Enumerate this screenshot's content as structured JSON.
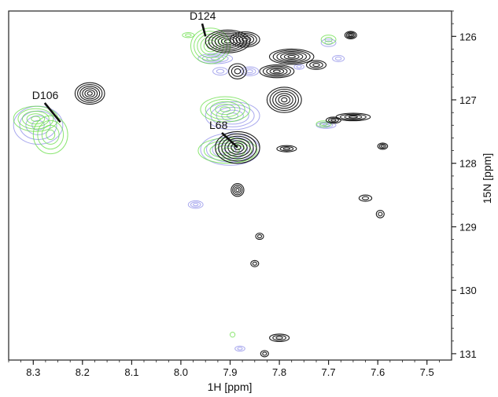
{
  "chart_data": {
    "type": "scatter",
    "subtype": "2D 1H-15N HSQC contour overlay",
    "xlabel": "1H [ppm]",
    "ylabel": "15N [ppm]",
    "xlim": [
      8.35,
      7.45
    ],
    "ylim": [
      125.6,
      131.1
    ],
    "x_reversed": true,
    "y_reversed": true,
    "x_ticks": [
      "8.3",
      "8.2",
      "8.1",
      "8.0",
      "7.9",
      "7.8",
      "7.7",
      "7.6",
      "7.5"
    ],
    "x_tick_values": [
      8.3,
      8.2,
      8.1,
      8.0,
      7.9,
      7.8,
      7.7,
      7.6,
      7.5
    ],
    "y_ticks": [
      "126",
      "127",
      "128",
      "129",
      "130",
      "131"
    ],
    "y_tick_values": [
      126,
      127,
      128,
      129,
      130,
      131
    ],
    "y_axis_position": "right",
    "grid": false,
    "series_colors": {
      "black": "#111111",
      "green": "#66dd44",
      "blue": "#8c8ce8"
    },
    "series": [
      {
        "color": "black",
        "peaks": [
          {
            "x": 7.655,
            "y": 125.98,
            "rx": 0.012,
            "ry": 0.06,
            "levels": 4
          },
          {
            "x": 7.905,
            "y": 126.08,
            "rx": 0.045,
            "ry": 0.18,
            "levels": 7
          },
          {
            "x": 7.87,
            "y": 126.05,
            "rx": 0.03,
            "ry": 0.12,
            "levels": 5
          },
          {
            "x": 7.775,
            "y": 126.32,
            "rx": 0.045,
            "ry": 0.12,
            "levels": 6
          },
          {
            "x": 7.805,
            "y": 126.55,
            "rx": 0.035,
            "ry": 0.1,
            "levels": 5
          },
          {
            "x": 7.725,
            "y": 126.45,
            "rx": 0.02,
            "ry": 0.07,
            "levels": 3
          },
          {
            "x": 7.885,
            "y": 126.55,
            "rx": 0.018,
            "ry": 0.12,
            "levels": 3
          },
          {
            "x": 8.185,
            "y": 126.9,
            "rx": 0.03,
            "ry": 0.17,
            "levels": 6
          },
          {
            "x": 7.79,
            "y": 127.0,
            "rx": 0.035,
            "ry": 0.2,
            "levels": 6
          },
          {
            "x": 7.65,
            "y": 127.27,
            "rx": 0.035,
            "ry": 0.06,
            "levels": 4
          },
          {
            "x": 7.69,
            "y": 127.32,
            "rx": 0.015,
            "ry": 0.05,
            "levels": 3
          },
          {
            "x": 7.885,
            "y": 127.75,
            "rx": 0.045,
            "ry": 0.25,
            "levels": 7
          },
          {
            "x": 7.785,
            "y": 127.77,
            "rx": 0.02,
            "ry": 0.05,
            "levels": 3
          },
          {
            "x": 7.59,
            "y": 127.73,
            "rx": 0.01,
            "ry": 0.05,
            "levels": 3
          },
          {
            "x": 7.885,
            "y": 128.42,
            "rx": 0.013,
            "ry": 0.1,
            "levels": 4
          },
          {
            "x": 7.625,
            "y": 128.55,
            "rx": 0.013,
            "ry": 0.05,
            "levels": 2
          },
          {
            "x": 7.595,
            "y": 128.8,
            "rx": 0.008,
            "ry": 0.06,
            "levels": 2
          },
          {
            "x": 7.84,
            "y": 129.15,
            "rx": 0.008,
            "ry": 0.05,
            "levels": 2
          },
          {
            "x": 7.85,
            "y": 129.58,
            "rx": 0.008,
            "ry": 0.05,
            "levels": 2
          },
          {
            "x": 7.8,
            "y": 130.75,
            "rx": 0.02,
            "ry": 0.06,
            "levels": 3
          },
          {
            "x": 7.83,
            "y": 131.0,
            "rx": 0.008,
            "ry": 0.05,
            "levels": 2
          }
        ]
      },
      {
        "color": "green",
        "peaks": [
          {
            "x": 8.295,
            "y": 127.3,
            "rx": 0.045,
            "ry": 0.2,
            "levels": 5
          },
          {
            "x": 8.265,
            "y": 127.55,
            "rx": 0.035,
            "ry": 0.3,
            "levels": 4
          },
          {
            "x": 7.94,
            "y": 126.15,
            "rx": 0.04,
            "ry": 0.28,
            "levels": 6
          },
          {
            "x": 7.91,
            "y": 127.15,
            "rx": 0.05,
            "ry": 0.2,
            "levels": 5
          },
          {
            "x": 7.905,
            "y": 127.8,
            "rx": 0.06,
            "ry": 0.2,
            "levels": 5
          },
          {
            "x": 7.71,
            "y": 127.38,
            "rx": 0.015,
            "ry": 0.05,
            "levels": 2
          },
          {
            "x": 7.7,
            "y": 126.05,
            "rx": 0.015,
            "ry": 0.07,
            "levels": 2
          },
          {
            "x": 7.985,
            "y": 125.98,
            "rx": 0.012,
            "ry": 0.04,
            "levels": 2
          },
          {
            "x": 7.895,
            "y": 130.7,
            "rx": 0.005,
            "ry": 0.04,
            "levels": 1
          }
        ]
      },
      {
        "color": "blue",
        "peaks": [
          {
            "x": 8.29,
            "y": 127.4,
            "rx": 0.05,
            "ry": 0.3,
            "levels": 4
          },
          {
            "x": 7.895,
            "y": 127.25,
            "rx": 0.055,
            "ry": 0.22,
            "levels": 5
          },
          {
            "x": 7.9,
            "y": 127.78,
            "rx": 0.06,
            "ry": 0.25,
            "levels": 5
          },
          {
            "x": 7.93,
            "y": 126.35,
            "rx": 0.035,
            "ry": 0.08,
            "levels": 4
          },
          {
            "x": 7.86,
            "y": 126.55,
            "rx": 0.018,
            "ry": 0.07,
            "levels": 3
          },
          {
            "x": 7.92,
            "y": 126.55,
            "rx": 0.015,
            "ry": 0.06,
            "levels": 2
          },
          {
            "x": 7.97,
            "y": 128.65,
            "rx": 0.015,
            "ry": 0.06,
            "levels": 3
          },
          {
            "x": 7.705,
            "y": 127.4,
            "rx": 0.02,
            "ry": 0.05,
            "levels": 3
          },
          {
            "x": 7.7,
            "y": 126.1,
            "rx": 0.015,
            "ry": 0.06,
            "levels": 2
          },
          {
            "x": 7.68,
            "y": 126.35,
            "rx": 0.012,
            "ry": 0.05,
            "levels": 2
          },
          {
            "x": 7.88,
            "y": 130.92,
            "rx": 0.01,
            "ry": 0.04,
            "levels": 2
          },
          {
            "x": 7.76,
            "y": 126.48,
            "rx": 0.01,
            "ry": 0.04,
            "levels": 2
          }
        ]
      }
    ],
    "annotations": [
      {
        "text": "D124",
        "x": 7.95,
        "y": 126.0,
        "label_x": 7.96,
        "label_y": 125.75
      },
      {
        "text": "D106",
        "x": 8.245,
        "y": 127.35,
        "label_x": 8.28,
        "label_y": 127.0
      },
      {
        "text": "L68",
        "x": 7.885,
        "y": 127.75,
        "label_x": 7.92,
        "label_y": 127.47
      }
    ]
  }
}
